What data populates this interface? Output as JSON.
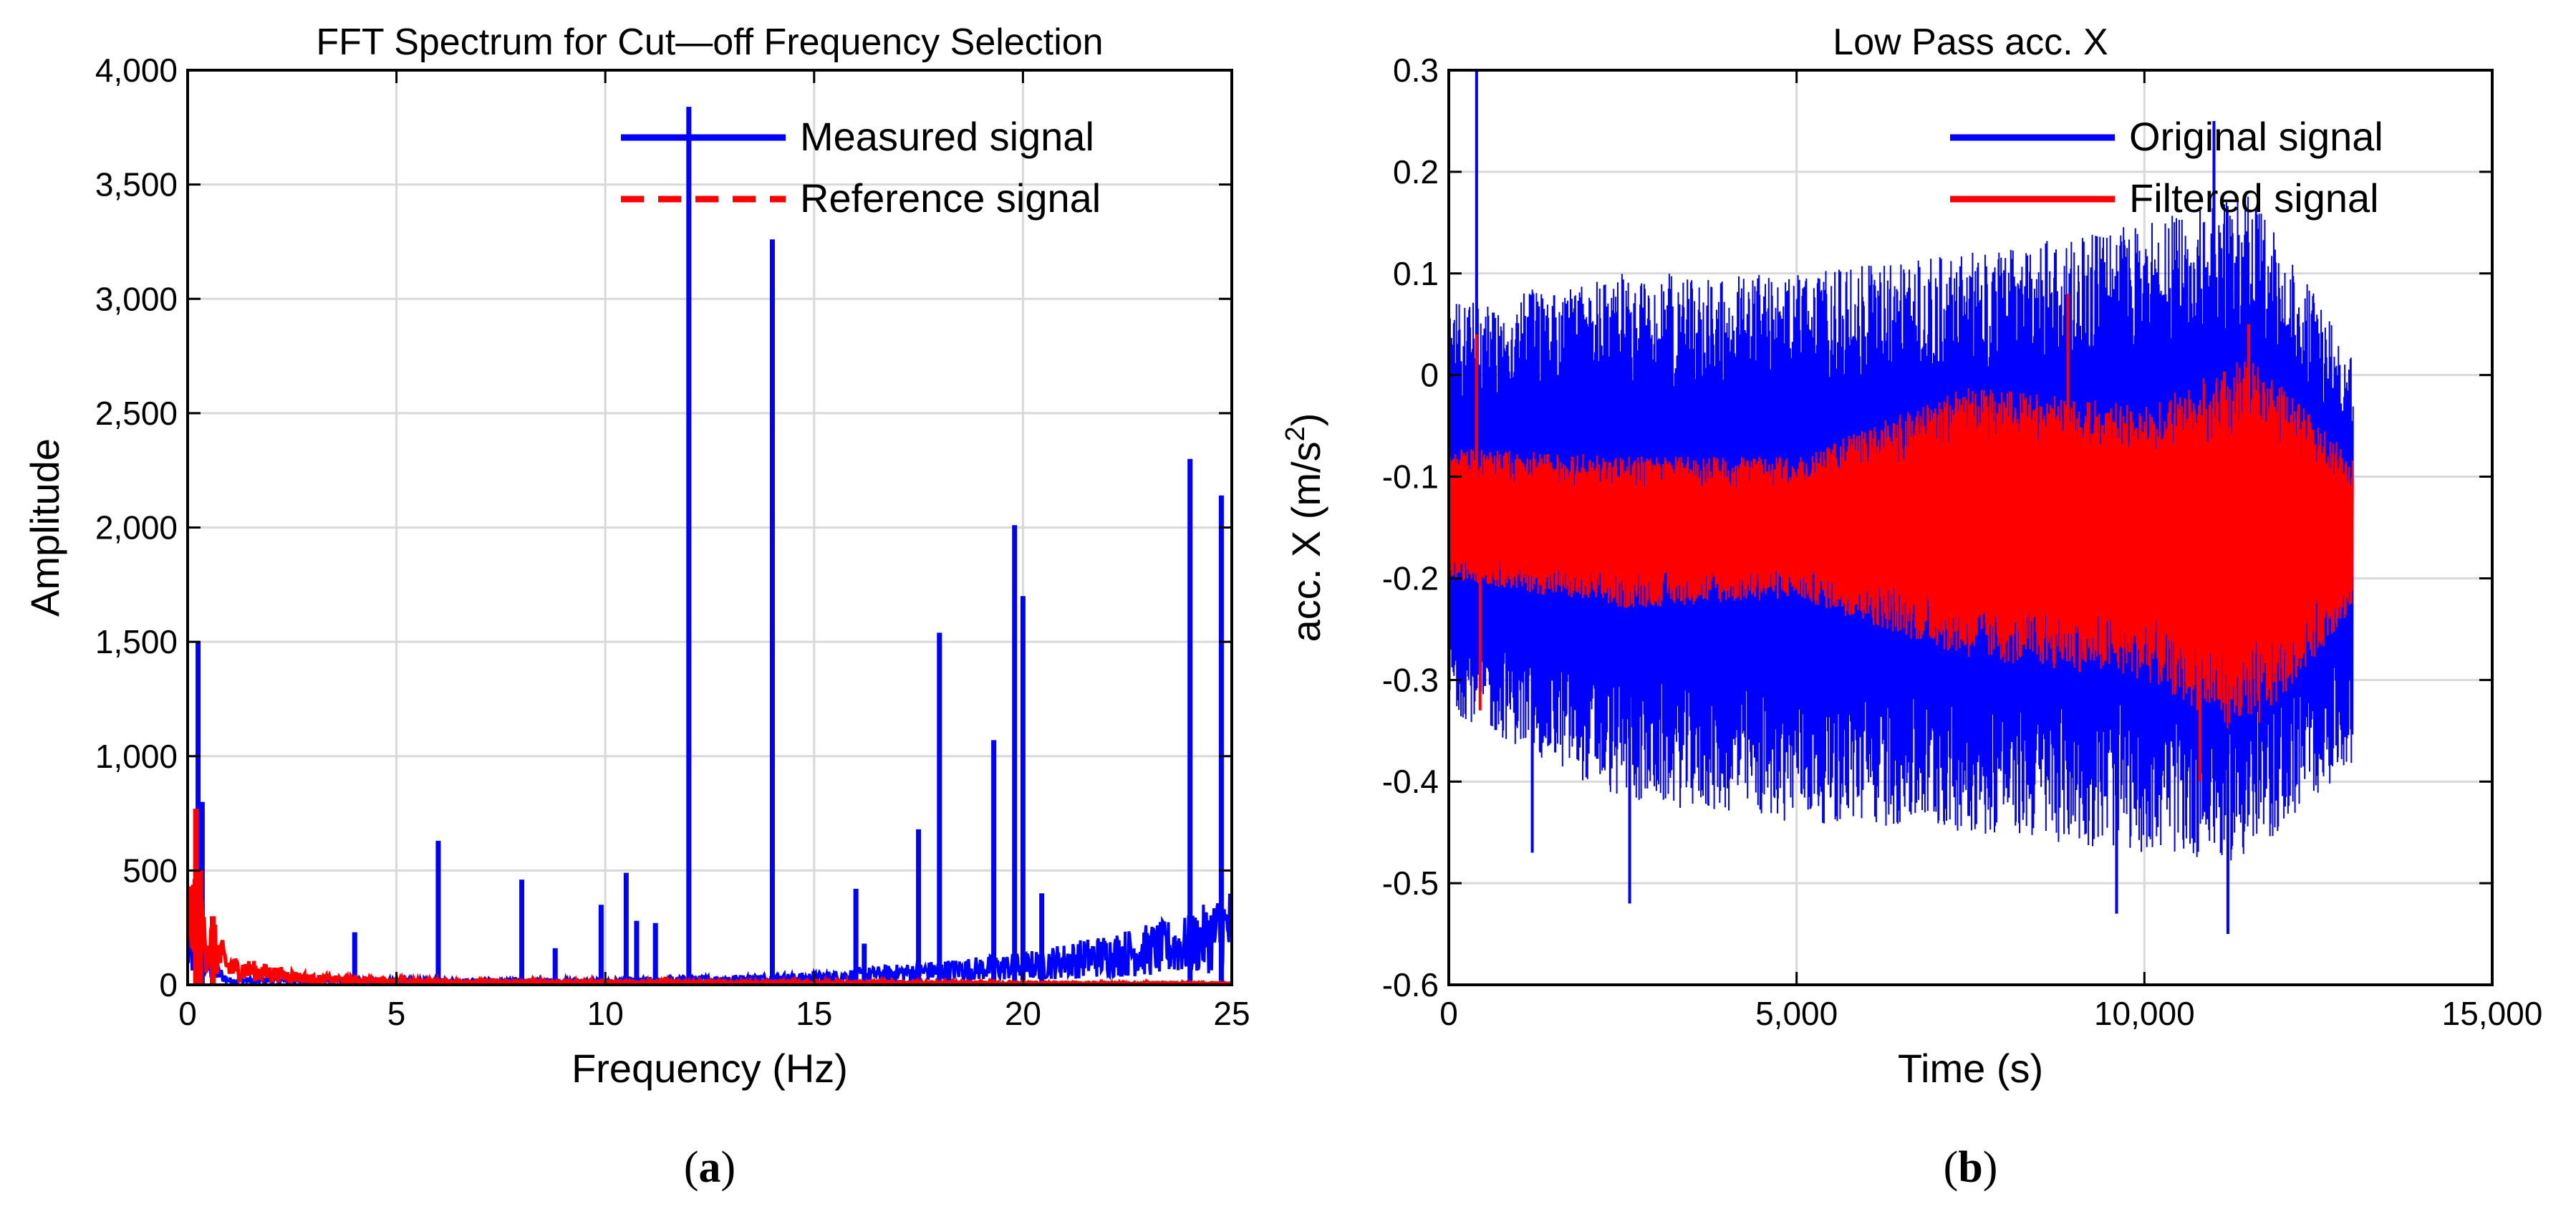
{
  "chart_data": [
    {
      "id": "a",
      "type": "line",
      "title": "FFT Spectrum for Cut—off Frequency Selection",
      "xlabel": "Frequency (Hz)",
      "ylabel": "Amplitude",
      "xlim": [
        0,
        25
      ],
      "ylim": [
        0,
        4000
      ],
      "xticks": [
        0,
        5,
        10,
        15,
        20,
        25
      ],
      "xtick_labels": [
        "0",
        "5",
        "10",
        "15",
        "20",
        "25"
      ],
      "yticks": [
        0,
        500,
        1000,
        1500,
        2000,
        2500,
        3000,
        3500,
        4000
      ],
      "ytick_labels": [
        "0",
        "500",
        "1,000",
        "1,500",
        "2,000",
        "2,500",
        "3,000",
        "3,500",
        "4,000"
      ],
      "grid": true,
      "legend_position": "top-right",
      "caption": "a",
      "series": [
        {
          "name": "Measured signal",
          "color": "#0000ff",
          "style": "solid",
          "peaks": [
            {
              "x": 0.25,
              "y": 1500
            },
            {
              "x": 0.35,
              "y": 800
            },
            {
              "x": 4.0,
              "y": 230
            },
            {
              "x": 6.0,
              "y": 630
            },
            {
              "x": 8.0,
              "y": 460
            },
            {
              "x": 8.8,
              "y": 160
            },
            {
              "x": 9.9,
              "y": 350
            },
            {
              "x": 10.5,
              "y": 490
            },
            {
              "x": 10.75,
              "y": 280
            },
            {
              "x": 11.2,
              "y": 270
            },
            {
              "x": 12.0,
              "y": 3840
            },
            {
              "x": 14.0,
              "y": 3260
            },
            {
              "x": 15.0,
              "y": 60
            },
            {
              "x": 16.0,
              "y": 420
            },
            {
              "x": 16.2,
              "y": 180
            },
            {
              "x": 17.5,
              "y": 680
            },
            {
              "x": 18.0,
              "y": 1540
            },
            {
              "x": 19.3,
              "y": 1070
            },
            {
              "x": 19.8,
              "y": 2010
            },
            {
              "x": 20.0,
              "y": 1700
            },
            {
              "x": 20.45,
              "y": 400
            },
            {
              "x": 24.0,
              "y": 2300
            },
            {
              "x": 24.75,
              "y": 2140
            }
          ],
          "noise_floor": [
            {
              "x": 0,
              "y": 220
            },
            {
              "x": 1,
              "y": 30
            },
            {
              "x": 10,
              "y": 25
            },
            {
              "x": 15,
              "y": 50
            },
            {
              "x": 20,
              "y": 130
            },
            {
              "x": 24,
              "y": 280
            },
            {
              "x": 25,
              "y": 400
            }
          ]
        },
        {
          "name": "Reference signal",
          "color": "#ff0000",
          "style": "dashed",
          "peaks": [
            {
              "x": 0.2,
              "y": 770
            },
            {
              "x": 0.3,
              "y": 500
            },
            {
              "x": 0.6,
              "y": 300
            }
          ],
          "noise_floor": [
            {
              "x": 0,
              "y": 480
            },
            {
              "x": 0.5,
              "y": 300
            },
            {
              "x": 1,
              "y": 120
            },
            {
              "x": 3,
              "y": 40
            },
            {
              "x": 6,
              "y": 20
            },
            {
              "x": 25,
              "y": 8
            }
          ]
        }
      ]
    },
    {
      "id": "b",
      "type": "line",
      "title": "Low Pass acc. X",
      "xlabel": "Time (s)",
      "ylabel_main": "acc.  X  (m/s",
      "ylabel_sup": "2",
      "ylabel_tail": ")",
      "xlim": [
        0,
        15000
      ],
      "ylim": [
        -0.6,
        0.3
      ],
      "xticks": [
        0,
        5000,
        10000,
        15000
      ],
      "xtick_labels": [
        "0",
        "5,000",
        "10,000",
        "15,000"
      ],
      "yticks": [
        -0.6,
        -0.5,
        -0.4,
        -0.3,
        -0.2,
        -0.1,
        0,
        0.1,
        0.2,
        0.3
      ],
      "ytick_labels": [
        "-0.6",
        "-0.5",
        "-0.4",
        "-0.3",
        "-0.2",
        "-0.1",
        "0",
        "0.1",
        "0.2",
        "0.3"
      ],
      "grid": true,
      "legend_position": "top-right",
      "caption": "b",
      "series": [
        {
          "name": "Original signal",
          "color": "#0000ff",
          "t_end": 13000,
          "mean": -0.15,
          "envelope": [
            {
              "t": 0,
              "lo": -0.33,
              "hi": 0.07
            },
            {
              "t": 2500,
              "lo": -0.42,
              "hi": 0.1
            },
            {
              "t": 5000,
              "lo": -0.44,
              "hi": 0.1
            },
            {
              "t": 7500,
              "lo": -0.45,
              "hi": 0.12
            },
            {
              "t": 10000,
              "lo": -0.47,
              "hi": 0.15
            },
            {
              "t": 11500,
              "lo": -0.48,
              "hi": 0.18
            },
            {
              "t": 13000,
              "lo": -0.38,
              "hi": 0.02
            }
          ],
          "spikes": [
            {
              "t": 400,
              "v": 0.3
            },
            {
              "t": 1200,
              "v": -0.47
            },
            {
              "t": 2600,
              "v": -0.52
            },
            {
              "t": 9600,
              "v": -0.53
            },
            {
              "t": 11000,
              "v": 0.25
            },
            {
              "t": 11200,
              "v": -0.55
            }
          ]
        },
        {
          "name": "Filtered signal",
          "color": "#ff0000",
          "t_end": 13000,
          "mean": -0.15,
          "envelope": [
            {
              "t": 0,
              "lo": -0.2,
              "hi": -0.07
            },
            {
              "t": 2500,
              "lo": -0.23,
              "hi": -0.08
            },
            {
              "t": 5000,
              "lo": -0.22,
              "hi": -0.08
            },
            {
              "t": 7500,
              "lo": -0.28,
              "hi": -0.01
            },
            {
              "t": 10000,
              "lo": -0.3,
              "hi": -0.03
            },
            {
              "t": 11500,
              "lo": -0.36,
              "hi": 0.02
            },
            {
              "t": 13000,
              "lo": -0.23,
              "hi": -0.08
            }
          ],
          "spikes": [
            {
              "t": 400,
              "v": 0.04
            },
            {
              "t": 450,
              "v": -0.33
            },
            {
              "t": 8900,
              "v": 0.08
            },
            {
              "t": 11500,
              "v": 0.05
            },
            {
              "t": 10800,
              "v": -0.4
            }
          ]
        }
      ]
    }
  ]
}
